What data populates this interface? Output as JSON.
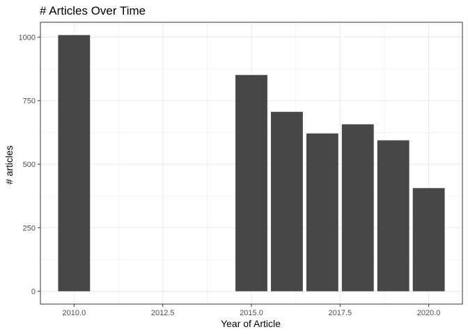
{
  "chart_data": {
    "type": "bar",
    "title": "# Articles Over Time",
    "xlabel": "Year of Article",
    "ylabel": "# articles",
    "x": [
      2010,
      2015,
      2016,
      2017,
      2018,
      2019,
      2020
    ],
    "values": [
      1008,
      851,
      706,
      621,
      657,
      594,
      406
    ],
    "xlim": [
      2009.05,
      2020.95
    ],
    "ylim": [
      -50.4,
      1058.4
    ],
    "xticks": [
      2010,
      2012.5,
      2015,
      2017.5,
      2020
    ],
    "xtick_labels": [
      "2010.0",
      "2012.5",
      "2015.0",
      "2017.5",
      "2020.0"
    ],
    "yticks": [
      0,
      250,
      500,
      750,
      1000
    ],
    "ytick_labels": [
      "0",
      "250",
      "500",
      "750",
      "1000"
    ],
    "grid": true,
    "bar_color": "#474747",
    "panel_border_color": "#333333",
    "grid_color": "#ebebeb"
  }
}
